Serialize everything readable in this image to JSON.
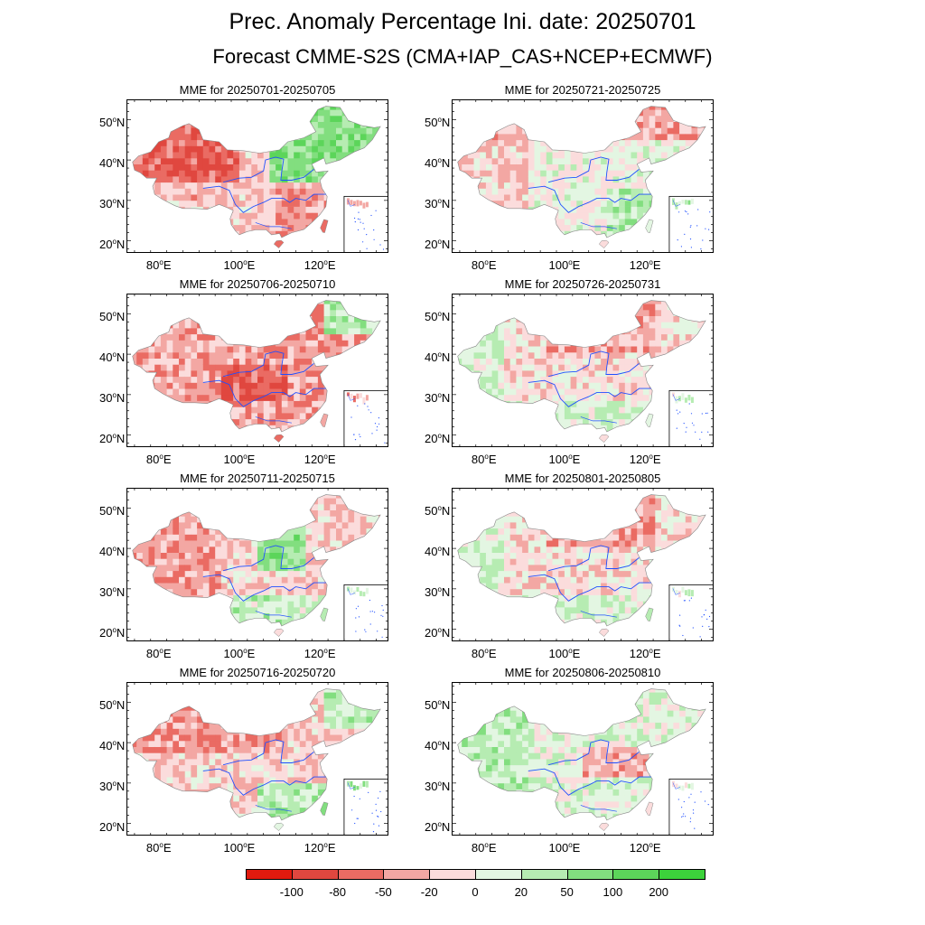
{
  "title": "Prec. Anomaly Percentage Ini. date: 20250701",
  "subtitle": "Forecast CMME-S2S (CMA+IAP_CAS+NCEP+ECMWF)",
  "panels": [
    {
      "title": "MME for 20250701-20250705",
      "dominant": "dry-west-wet-north"
    },
    {
      "title": "MME for 20250721-20250725",
      "dominant": "mixed-light"
    },
    {
      "title": "MME for 20250706-20250710",
      "dominant": "dry"
    },
    {
      "title": "MME for 20250726-20250731",
      "dominant": "mixed"
    },
    {
      "title": "MME for 20250711-20250715",
      "dominant": "mixed-dry-west"
    },
    {
      "title": "MME for 20250801-20250805",
      "dominant": "mixed"
    },
    {
      "title": "MME for 20250716-20250720",
      "dominant": "dry-west-wet-south"
    },
    {
      "title": "MME for 20250806-20250810",
      "dominant": "mixed-wet"
    }
  ],
  "axes": {
    "lat_labels": [
      {
        "deg": "50",
        "hem": "N"
      },
      {
        "deg": "40",
        "hem": "N"
      },
      {
        "deg": "30",
        "hem": "N"
      },
      {
        "deg": "20",
        "hem": "N"
      }
    ],
    "lon_labels": [
      {
        "deg": "80",
        "hem": "E"
      },
      {
        "deg": "100",
        "hem": "E"
      },
      {
        "deg": "120",
        "hem": "E"
      }
    ],
    "lat_range": [
      17,
      55
    ],
    "lon_range": [
      72,
      137
    ]
  },
  "colorbar": {
    "colors": [
      "#e11a0e",
      "#e0473f",
      "#ea6b63",
      "#f3a7a3",
      "#fbdcdc",
      "#e3f6e2",
      "#b6ecb2",
      "#82de7f",
      "#5cd55a",
      "#3cd23b"
    ],
    "labels": [
      "-100",
      "-80",
      "-50",
      "-20",
      "0",
      "20",
      "50",
      "100",
      "200"
    ]
  },
  "map_colors": {
    "outline": "#888888",
    "rivers": "#1f4fff"
  }
}
